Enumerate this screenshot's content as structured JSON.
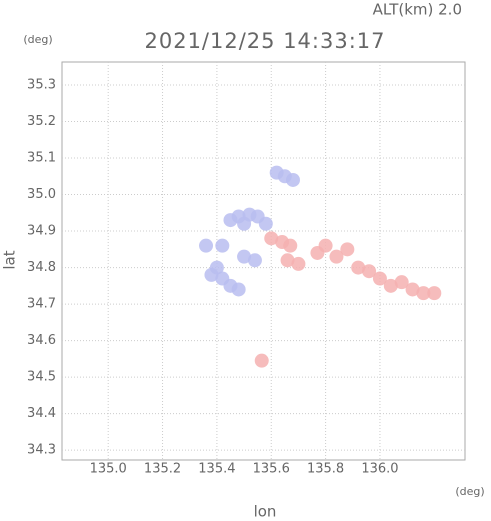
{
  "chart_data": {
    "type": "scatter",
    "title": "2021/12/25 14:33:17",
    "subtitle": "ALT(km)  2.0",
    "x_label": "lon",
    "y_label": "lat",
    "x_unit": "(deg)",
    "y_unit": "(deg)",
    "xlim": [
      134.83,
      136.313
    ],
    "ylim": [
      34.273,
      35.363
    ],
    "xticks": [
      {
        "value": 135,
        "label": "135.0"
      },
      135.2,
      135.4,
      135.6,
      135.8,
      {
        "value": 136,
        "label": "136.0"
      }
    ],
    "yticks": [
      34.3,
      34.4,
      34.5,
      34.6,
      34.7,
      34.8,
      34.9,
      {
        "value": 35,
        "label": "35.0"
      },
      35.1,
      35.2,
      35.3
    ],
    "grid": true,
    "series": [
      {
        "color": "#b9bdf0",
        "x": [
          135.48,
          135.52,
          135.55,
          135.5,
          135.45,
          135.58,
          135.36,
          135.42,
          135.4,
          135.38,
          135.42,
          135.45,
          135.48,
          135.62,
          135.65,
          135.68,
          135.5,
          135.54
        ],
        "values": [
          34.94,
          34.945,
          34.94,
          34.92,
          34.93,
          34.92,
          34.86,
          34.86,
          34.8,
          34.78,
          34.77,
          34.75,
          34.74,
          35.06,
          35.05,
          35.04,
          34.83,
          34.82
        ]
      },
      {
        "color": "#f5b0b0",
        "x": [
          135.6,
          135.64,
          135.67,
          135.66,
          135.7,
          135.77,
          135.8,
          135.84,
          135.88,
          135.92,
          135.96,
          136.0,
          136.04,
          136.08,
          136.12,
          136.16,
          136.2,
          135.565
        ],
        "values": [
          34.88,
          34.87,
          34.86,
          34.82,
          34.81,
          34.84,
          34.86,
          34.83,
          34.85,
          34.8,
          34.79,
          34.77,
          34.75,
          34.76,
          34.74,
          34.73,
          34.73,
          34.545
        ]
      }
    ]
  }
}
